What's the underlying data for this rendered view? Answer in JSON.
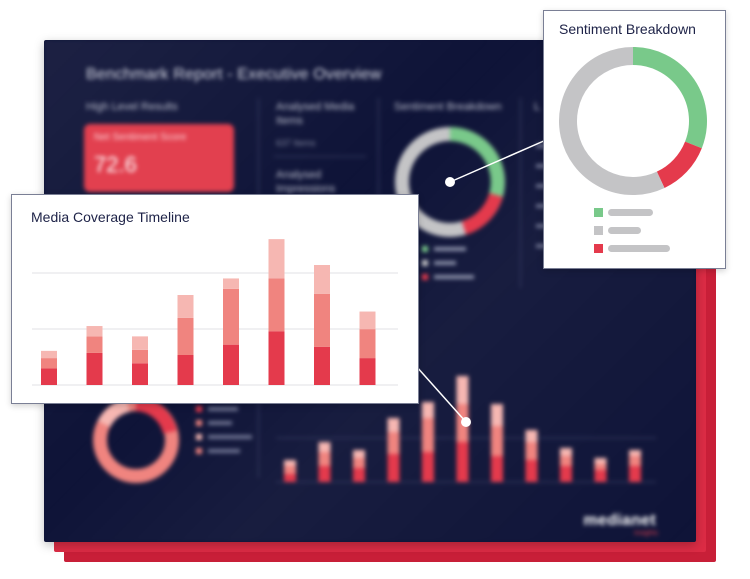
{
  "dashboard": {
    "title": "Benchmark Report - Executive Overview",
    "high_level_label": "High Level Results",
    "net_sentiment_label": "Net Sentiment Score",
    "net_sentiment_value": "72.6",
    "analysed_media_label": "Analysed Media Items",
    "analysed_media_value": "637 Items",
    "analysed_impressions_label": "Analysed Impressions",
    "sentiment_label": "Sentiment Breakdown",
    "logo": "medianet",
    "logo_sub": "insights"
  },
  "timeline_card": {
    "title": "Media Coverage Timeline"
  },
  "sentiment_card": {
    "title": "Sentiment Breakdown"
  },
  "colors": {
    "positive": "#79c98a",
    "neutral": "#c4c4c6",
    "negative": "#e43a4c",
    "stack_dark": "#e43a4c",
    "stack_mid": "#f0847f",
    "stack_light": "#f6b7b2",
    "navy": "#0f1438"
  },
  "chart_data": [
    {
      "type": "bar",
      "stacked": true,
      "title": "Media Coverage Timeline",
      "categories": [
        "",
        "",
        "",
        "",
        "",
        "",
        "",
        ""
      ],
      "series": [
        {
          "values": [
            16,
            31,
            21,
            29,
            39,
            52,
            37,
            26
          ]
        },
        {
          "values": [
            10,
            16,
            13,
            36,
            54,
            51,
            51,
            28
          ]
        },
        {
          "values": [
            7,
            10,
            13,
            22,
            10,
            38,
            28,
            17
          ]
        }
      ],
      "ylim": [
        0,
        145
      ],
      "grid": true
    },
    {
      "type": "pie",
      "donut": true,
      "title": "Sentiment Breakdown",
      "slices": [
        {
          "value": 31,
          "color": "#79c98a"
        },
        {
          "value": 12,
          "color": "#e43a4c"
        },
        {
          "value": 57,
          "color": "#c4c4c6"
        }
      ]
    }
  ]
}
